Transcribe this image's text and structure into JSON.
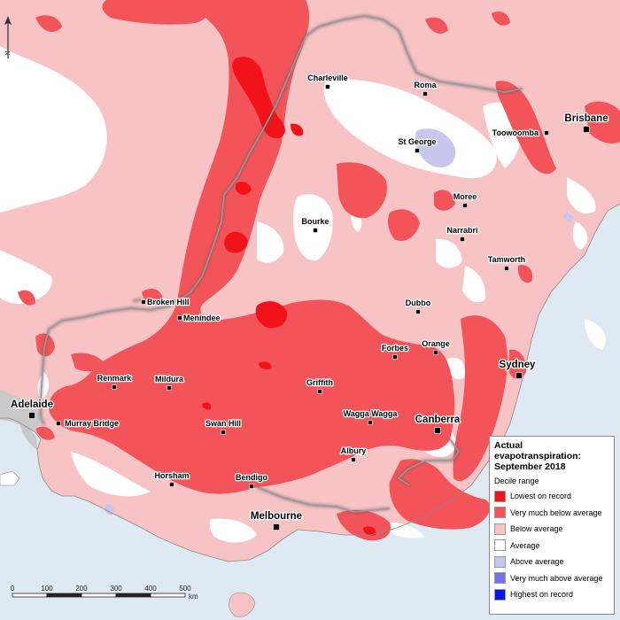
{
  "title": "Actual evapotranspiration: September 2018",
  "legend": {
    "title_lines": [
      "Actual",
      "evapotranspiration:",
      "September 2018"
    ],
    "subtitle": "Decile range",
    "items": [
      {
        "label": "Lowest on record",
        "color": "#f2131a"
      },
      {
        "label": "Very much below average",
        "color": "#f2545a"
      },
      {
        "label": "Below average",
        "color": "#f7c3c5"
      },
      {
        "label": "Average",
        "color": "#ffffff"
      },
      {
        "label": "Above average",
        "color": "#c9c6ee"
      },
      {
        "label": "Very much above average",
        "color": "#7472e6"
      },
      {
        "label": "Highest on record",
        "color": "#0a14e8"
      }
    ]
  },
  "colors": {
    "ocean": "#dfe9f2",
    "outside_land": "#c9c9c9",
    "state_border": "#9a9a9a"
  },
  "north_arrow_label": "N",
  "scale_bar": {
    "ticks": [
      "0",
      "100",
      "200",
      "300",
      "400",
      "500"
    ],
    "unit": "km"
  },
  "places": [
    {
      "name": "Charleville",
      "kind": "town"
    },
    {
      "name": "Roma",
      "kind": "town"
    },
    {
      "name": "Brisbane",
      "kind": "city"
    },
    {
      "name": "Toowoomba",
      "kind": "town"
    },
    {
      "name": "St George",
      "kind": "town"
    },
    {
      "name": "Moree",
      "kind": "town"
    },
    {
      "name": "Bourke",
      "kind": "town"
    },
    {
      "name": "Narrabri",
      "kind": "town"
    },
    {
      "name": "Tamworth",
      "kind": "town"
    },
    {
      "name": "Broken Hill",
      "kind": "town"
    },
    {
      "name": "Menindee",
      "kind": "town"
    },
    {
      "name": "Dubbo",
      "kind": "town"
    },
    {
      "name": "Forbes",
      "kind": "town"
    },
    {
      "name": "Orange",
      "kind": "town"
    },
    {
      "name": "Sydney",
      "kind": "city"
    },
    {
      "name": "Renmark",
      "kind": "town"
    },
    {
      "name": "Mildura",
      "kind": "town"
    },
    {
      "name": "Griffith",
      "kind": "town"
    },
    {
      "name": "Adelaide",
      "kind": "city"
    },
    {
      "name": "Murray Bridge",
      "kind": "town"
    },
    {
      "name": "Swan Hill",
      "kind": "town"
    },
    {
      "name": "Wagga Wagga",
      "kind": "town"
    },
    {
      "name": "Canberra",
      "kind": "city"
    },
    {
      "name": "Albury",
      "kind": "town"
    },
    {
      "name": "Horsham",
      "kind": "town"
    },
    {
      "name": "Bendigo",
      "kind": "town"
    },
    {
      "name": "Melbourne",
      "kind": "city"
    }
  ]
}
